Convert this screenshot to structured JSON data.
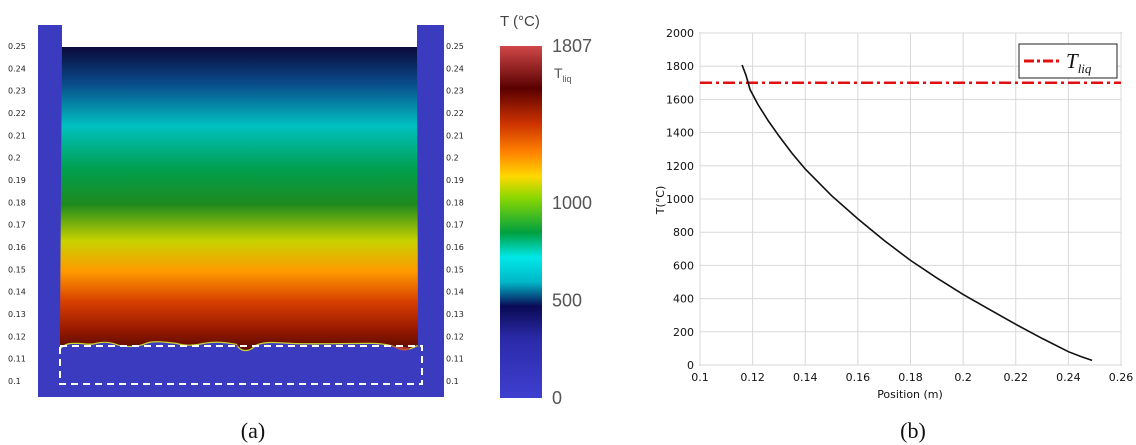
{
  "chart_data": [
    {
      "type": "heatmap",
      "panel_label": "(a)",
      "y_ticks": [
        "0.25",
        "0.24",
        "0.23",
        "0.22",
        "0.21",
        "0.2",
        "0.19",
        "0.18",
        "0.17",
        "0.16",
        "0.15",
        "0.14",
        "0.13",
        "0.12",
        "0.11",
        "0.1"
      ],
      "y_range": [
        0.1,
        0.25
      ],
      "colorbar": {
        "title": "T (°C)",
        "range": [
          0,
          1807
        ],
        "tick_labels": [
          "1807",
          "1000",
          "500",
          "0"
        ],
        "tick_values": [
          1807,
          1000,
          500,
          0
        ],
        "liquidus_label": "T",
        "liquidus_subscript": "liq",
        "liquidus_value": 1700,
        "colors": [
          "#3f3fd0",
          "#0a0a55",
          "#00e8e8",
          "#00a040",
          "#8cd800",
          "#ffd800",
          "#ff8000",
          "#cc3200",
          "#5a0000",
          "#d04848"
        ]
      },
      "colors": {
        "mold": "#3b3bbf",
        "interface": "#c8d430",
        "dashed": "#ffffff"
      }
    },
    {
      "type": "line",
      "panel_label": "(b)",
      "xlabel": "Position (m)",
      "ylabel": "T(°C)",
      "xlim": [
        0.1,
        0.26
      ],
      "ylim": [
        0,
        2000
      ],
      "xticks": [
        0.1,
        0.12,
        0.14,
        0.16,
        0.18,
        0.2,
        0.22,
        0.24,
        0.26
      ],
      "yticks": [
        0,
        200,
        400,
        600,
        800,
        1000,
        1200,
        1400,
        1600,
        1800,
        2000
      ],
      "xtick_labels": [
        "0.1",
        "0.12",
        "0.14",
        "0.16",
        "0.18",
        "0.2",
        "0.22",
        "0.24",
        "0.26"
      ],
      "ytick_labels": [
        "0",
        "200",
        "400",
        "600",
        "800",
        "1000",
        "1200",
        "1400",
        "1600",
        "1800",
        "2000"
      ],
      "grid": true,
      "legend_position": "top-right",
      "series": [
        {
          "color": "#111111",
          "x": [
            0.116,
            0.1175,
            0.119,
            0.122,
            0.126,
            0.13,
            0.135,
            0.14,
            0.15,
            0.16,
            0.17,
            0.18,
            0.19,
            0.2,
            0.21,
            0.22,
            0.23,
            0.24,
            0.245,
            0.249
          ],
          "y": [
            1807,
            1745,
            1660,
            1570,
            1470,
            1380,
            1275,
            1180,
            1020,
            880,
            750,
            630,
            525,
            425,
            335,
            245,
            160,
            80,
            50,
            28
          ]
        },
        {
          "name": "T",
          "name_subscript": "liq",
          "color": "#e01010",
          "style": "dash-dot",
          "y_constant": 1700
        }
      ]
    }
  ]
}
